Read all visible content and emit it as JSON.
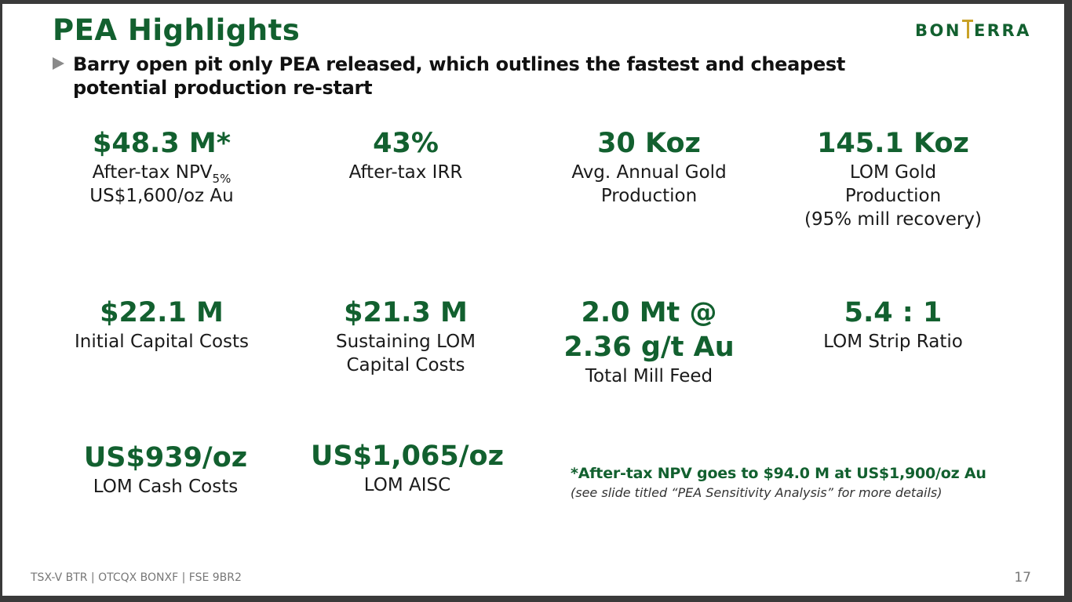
{
  "slide": {
    "title": "PEA Highlights",
    "logo": {
      "text_left": "BON",
      "text_right": "ERRA"
    },
    "bullet": "Barry open pit only PEA released, which outlines the fastest and cheapest potential production re-start",
    "metrics": [
      {
        "value": "$48.3 M*",
        "label1": "After-tax NPV",
        "label1_sub": "5%",
        "label2": "US$1,600/oz Au"
      },
      {
        "value": "43%",
        "label1": "After-tax IRR"
      },
      {
        "value": "30 Koz",
        "label1": "Avg. Annual Gold",
        "label2": "Production"
      },
      {
        "value": "145.1 Koz",
        "label1": "LOM Gold",
        "label2": "Production",
        "label3": "(95% mill recovery)"
      },
      {
        "value": "$22.1 M",
        "label1": "Initial Capital Costs"
      },
      {
        "value": "$21.3 M",
        "label1": "Sustaining LOM",
        "label2": "Capital Costs"
      },
      {
        "value": "2.0 Mt @",
        "value2": "2.36 g/t Au",
        "label1": "Total Mill Feed"
      },
      {
        "value": "5.4 : 1",
        "label1": "LOM Strip Ratio"
      },
      {
        "value": "US$939/oz",
        "label1": "LOM Cash Costs"
      },
      {
        "value": "US$1,065/oz",
        "label1": "LOM AISC"
      }
    ],
    "note": {
      "main": "*After-tax NPV goes to $94.0 M at US$1,900/oz Au",
      "sub": "(see slide titled “PEA Sensitivity Analysis” for more details)"
    },
    "footer": "TSX-V  BTR  | OTCQX  BONXF  | FSE  9BR2",
    "page_number": "17"
  },
  "colors": {
    "brand_green": "#12602f",
    "logo_gold": "#c9a227",
    "bullet_gray": "#8a8a8a"
  }
}
